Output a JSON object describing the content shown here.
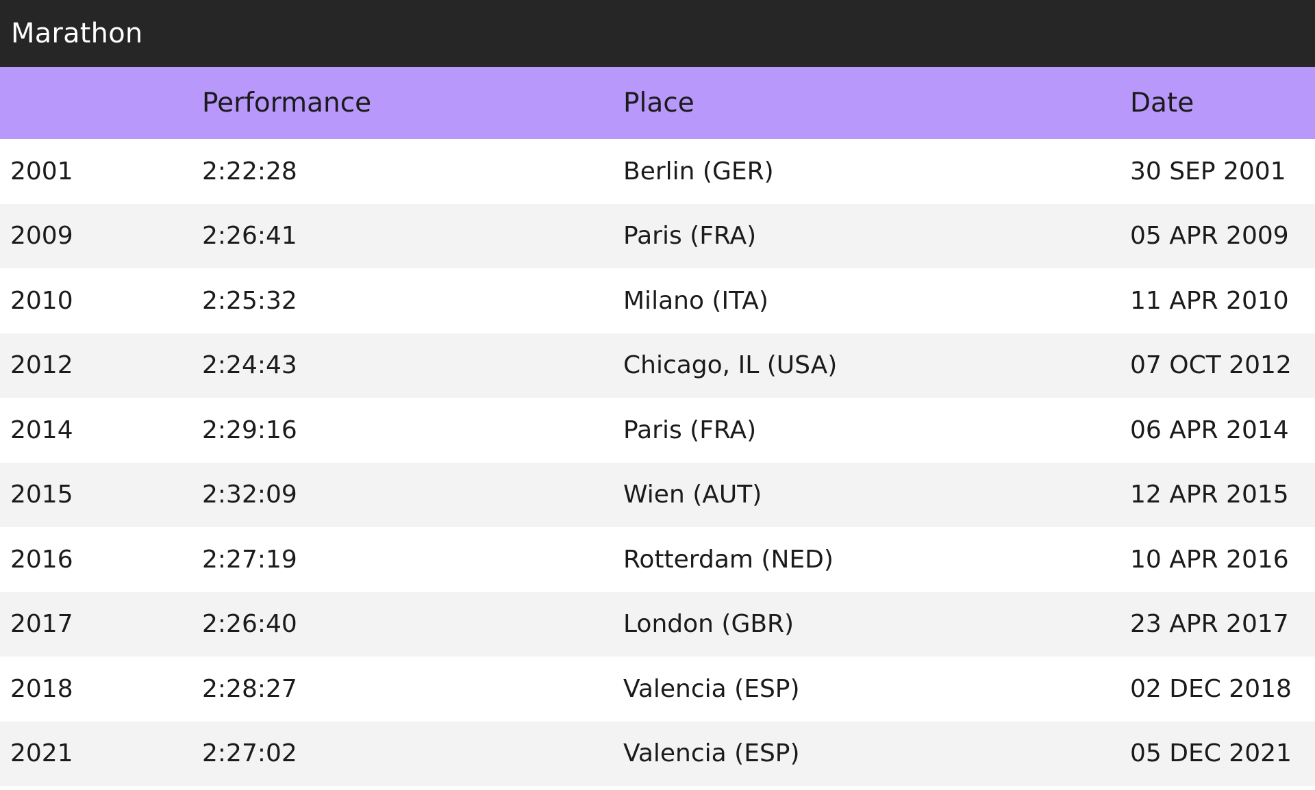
{
  "header": {
    "title": "Marathon"
  },
  "table": {
    "columns": [
      "",
      "Performance",
      "Place",
      "Date"
    ],
    "rows": [
      {
        "year": "2001",
        "performance": "2:22:28",
        "place": "Berlin (GER)",
        "date": "30 SEP 2001"
      },
      {
        "year": "2009",
        "performance": "2:26:41",
        "place": "Paris (FRA)",
        "date": "05 APR 2009"
      },
      {
        "year": "2010",
        "performance": "2:25:32",
        "place": "Milano (ITA)",
        "date": "11 APR 2010"
      },
      {
        "year": "2012",
        "performance": "2:24:43",
        "place": "Chicago, IL (USA)",
        "date": "07 OCT 2012"
      },
      {
        "year": "2014",
        "performance": "2:29:16",
        "place": "Paris (FRA)",
        "date": "06 APR 2014"
      },
      {
        "year": "2015",
        "performance": "2:32:09",
        "place": "Wien (AUT)",
        "date": "12 APR 2015"
      },
      {
        "year": "2016",
        "performance": "2:27:19",
        "place": "Rotterdam (NED)",
        "date": "10 APR 2016"
      },
      {
        "year": "2017",
        "performance": "2:26:40",
        "place": "London (GBR)",
        "date": "23 APR 2017"
      },
      {
        "year": "2018",
        "performance": "2:28:27",
        "place": "Valencia (ESP)",
        "date": "02 DEC 2018"
      },
      {
        "year": "2021",
        "performance": "2:27:02",
        "place": "Valencia (ESP)",
        "date": "05 DEC 2021"
      }
    ]
  },
  "colors": {
    "title_bar": "#262626",
    "header_row": "#b898fb",
    "row_alt": "#f3f3f3",
    "row": "#ffffff"
  }
}
